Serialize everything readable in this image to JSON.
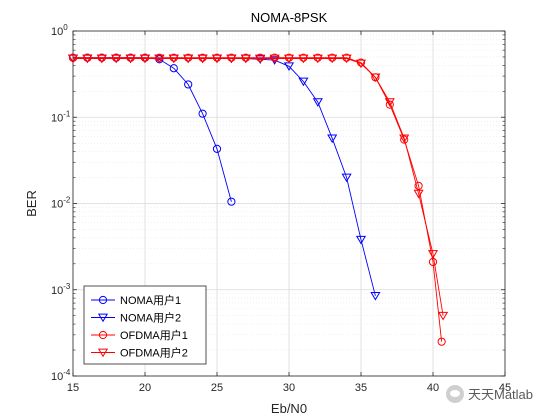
{
  "chart_data": {
    "type": "line",
    "title": "NOMA-8PSK",
    "xlabel": "Eb/N0",
    "ylabel": "BER",
    "xlim": [
      15,
      45
    ],
    "ylim": [
      0.0001,
      1
    ],
    "yscale": "log",
    "xticks": [
      15,
      20,
      25,
      30,
      35,
      40,
      45
    ],
    "yticks": [
      {
        "value": 1,
        "base": "10",
        "exp": "0"
      },
      {
        "value": 0.1,
        "base": "10",
        "exp": "-1"
      },
      {
        "value": 0.01,
        "base": "10",
        "exp": "-2"
      },
      {
        "value": 0.001,
        "base": "10",
        "exp": "-3"
      },
      {
        "value": 0.0001,
        "base": "10",
        "exp": "-4"
      }
    ],
    "grid": true,
    "legend_position": "bottom-left",
    "series": [
      {
        "name": "NOMA用户1",
        "color": "#0000ff",
        "marker": "circle",
        "x": [
          15,
          16,
          17,
          18,
          19,
          20,
          21,
          22,
          23,
          24,
          25,
          26
        ],
        "y": [
          0.49,
          0.49,
          0.49,
          0.49,
          0.49,
          0.49,
          0.47,
          0.37,
          0.24,
          0.11,
          0.043,
          0.0105
        ]
      },
      {
        "name": "NOMA用户2",
        "color": "#0000ff",
        "marker": "triangle-down",
        "x": [
          15,
          16,
          17,
          18,
          19,
          20,
          21,
          22,
          23,
          24,
          25,
          26,
          27,
          28,
          29,
          30,
          31,
          32,
          33,
          34,
          35,
          36
        ],
        "y": [
          0.48,
          0.48,
          0.48,
          0.48,
          0.48,
          0.48,
          0.48,
          0.48,
          0.48,
          0.48,
          0.48,
          0.48,
          0.48,
          0.47,
          0.46,
          0.39,
          0.26,
          0.15,
          0.057,
          0.02,
          0.0038,
          0.00085
        ]
      },
      {
        "name": "OFDMA用户1",
        "color": "#ff0000",
        "marker": "circle",
        "x": [
          15,
          16,
          17,
          18,
          19,
          20,
          21,
          22,
          23,
          24,
          25,
          26,
          27,
          28,
          29,
          30,
          31,
          32,
          33,
          34,
          35,
          36,
          37,
          38,
          39,
          40
        ],
        "y": [
          0.49,
          0.49,
          0.49,
          0.49,
          0.49,
          0.49,
          0.49,
          0.49,
          0.49,
          0.49,
          0.49,
          0.49,
          0.49,
          0.49,
          0.49,
          0.49,
          0.49,
          0.49,
          0.49,
          0.49,
          0.43,
          0.29,
          0.14,
          0.055,
          0.016,
          0.0021
        ]
      },
      {
        "name": "OFDMA用户2",
        "color": "#ff0000",
        "marker": "triangle-down",
        "x": [
          15,
          16,
          17,
          18,
          19,
          20,
          21,
          22,
          23,
          24,
          25,
          26,
          27,
          28,
          29,
          30,
          31,
          32,
          33,
          34,
          35,
          36,
          37,
          38,
          39,
          40
        ],
        "y": [
          0.48,
          0.48,
          0.48,
          0.48,
          0.48,
          0.48,
          0.48,
          0.48,
          0.48,
          0.48,
          0.48,
          0.48,
          0.48,
          0.48,
          0.48,
          0.48,
          0.48,
          0.48,
          0.48,
          0.48,
          0.42,
          0.29,
          0.15,
          0.057,
          0.013,
          0.0026
        ]
      }
    ],
    "extra_points": [
      {
        "series": 2,
        "x": 40.6,
        "y": 0.00025
      },
      {
        "series": 3,
        "x": 40.7,
        "y": 0.0005
      }
    ]
  },
  "watermark": {
    "text": "天天Matlab",
    "icon": "wechat-icon"
  }
}
